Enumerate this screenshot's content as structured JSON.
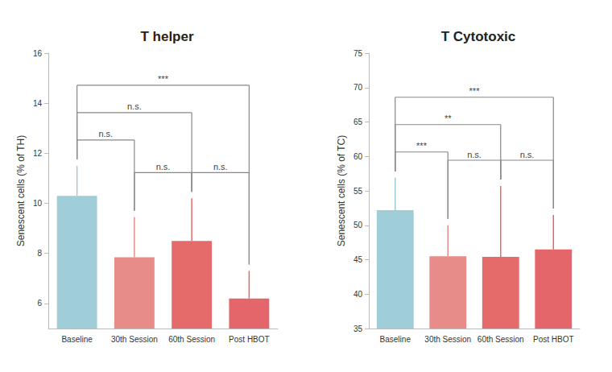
{
  "chart_data": [
    {
      "type": "bar",
      "title": "T helper",
      "y_label": "Senescent cells (% of TH)",
      "categories": [
        "Baseline",
        "30th Session",
        "60th Session",
        "Post HBOT"
      ],
      "values": [
        10.3,
        7.85,
        8.5,
        6.2
      ],
      "errors": [
        1.2,
        1.6,
        1.7,
        1.1
      ],
      "colors": [
        "#9fcdd8",
        "#e88c8a",
        "#e56b6b",
        "#e5666a"
      ],
      "ylim": [
        5,
        16
      ],
      "yticks": [
        6,
        8,
        10,
        12,
        14,
        16
      ],
      "grid": false,
      "comparisons": [
        {
          "from": "Baseline",
          "to": "30th Session",
          "label": "n.s."
        },
        {
          "from": "30th Session",
          "to": "60th Session",
          "label": "n.s."
        },
        {
          "from": "60th Session",
          "to": "Post HBOT",
          "label": "n.s."
        },
        {
          "from": "Baseline",
          "to": "60th Session",
          "label": "n.s."
        },
        {
          "from": "Baseline",
          "to": "Post HBOT",
          "label": "***"
        }
      ]
    },
    {
      "type": "bar",
      "title": "T Cytotoxic",
      "y_label": "Senescent cells (% of TC)",
      "categories": [
        "Baseline",
        "30th Session",
        "60th Session",
        "Post HBOT"
      ],
      "values": [
        52.2,
        45.5,
        45.4,
        46.5
      ],
      "errors": [
        4.7,
        4.5,
        10.3,
        5.0
      ],
      "colors": [
        "#9fcdd8",
        "#e88c8a",
        "#e56b6b",
        "#e5666a"
      ],
      "ylim": [
        35,
        75
      ],
      "yticks": [
        35,
        40,
        45,
        50,
        55,
        60,
        65,
        70,
        75
      ],
      "grid": false,
      "comparisons": [
        {
          "from": "Baseline",
          "to": "30th Session",
          "label": "***"
        },
        {
          "from": "30th Session",
          "to": "60th Session",
          "label": "n.s."
        },
        {
          "from": "60th Session",
          "to": "Post HBOT",
          "label": "n.s."
        },
        {
          "from": "Baseline",
          "to": "60th Session",
          "label": "**"
        },
        {
          "from": "Baseline",
          "to": "Post HBOT",
          "label": "***"
        }
      ]
    }
  ]
}
